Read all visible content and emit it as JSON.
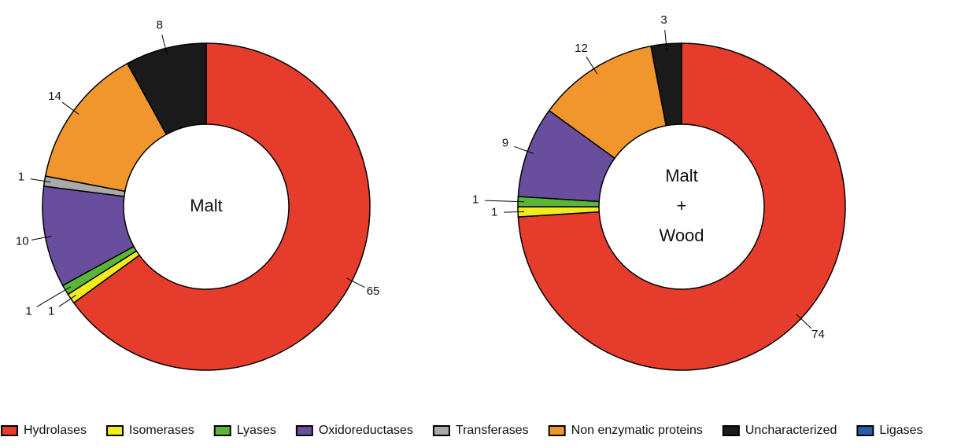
{
  "chart_data": [
    {
      "type": "donut",
      "center_label": [
        "Malt"
      ],
      "categories": [
        "Hydrolases",
        "Isomerases",
        "Lyases",
        "Oxidoreductases",
        "Transferases",
        "Non enzymatic proteins",
        "Uncharacterized",
        "Ligases"
      ],
      "values": [
        65,
        1,
        1,
        10,
        1,
        14,
        8,
        0
      ],
      "colors": [
        "#e63c2c",
        "#f2eb1e",
        "#5ab636",
        "#6a4e9e",
        "#aaaaaa",
        "#f0962d",
        "#1a1a1a",
        "#2c5aa8"
      ]
    },
    {
      "type": "donut",
      "center_label": [
        "Malt",
        "+",
        "Wood"
      ],
      "categories": [
        "Hydrolases",
        "Isomerases",
        "Lyases",
        "Oxidoreductases",
        "Transferases",
        "Non enzymatic proteins",
        "Uncharacterized",
        "Ligases"
      ],
      "values": [
        74,
        1,
        1,
        9,
        0,
        12,
        3,
        0
      ],
      "colors": [
        "#e63c2c",
        "#f2eb1e",
        "#5ab636",
        "#6a4e9e",
        "#aaaaaa",
        "#f0962d",
        "#1a1a1a",
        "#2c5aa8"
      ]
    }
  ]
}
